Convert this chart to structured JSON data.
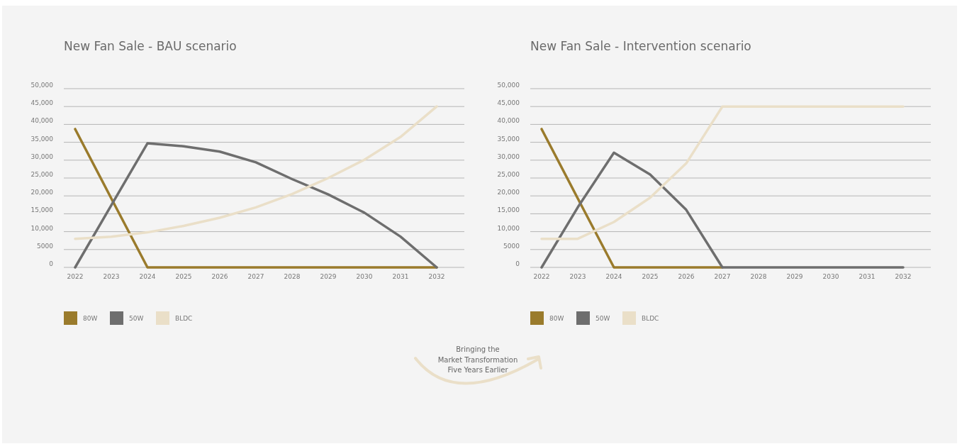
{
  "chart_data": [
    {
      "type": "line",
      "title": "New Fan Sale - BAU scenario",
      "categories": [
        "2022",
        "2023",
        "2024",
        "2025",
        "2026",
        "2027",
        "2028",
        "2029",
        "2030",
        "2031",
        "2032"
      ],
      "series": [
        {
          "name": "80W",
          "color": "#9a7b2c",
          "values": [
            38700,
            19300,
            0,
            0,
            0,
            0,
            0,
            0,
            0,
            0,
            0
          ]
        },
        {
          "name": "50W",
          "color": "#6e6e6e",
          "values": [
            0,
            17400,
            34700,
            33900,
            32400,
            29400,
            24700,
            20400,
            15300,
            8600,
            0
          ]
        },
        {
          "name": "BLDC",
          "color": "#eadfc8",
          "values": [
            8000,
            8600,
            9800,
            11600,
            13900,
            16800,
            20500,
            25000,
            30100,
            36500,
            45000
          ]
        }
      ],
      "ylim": [
        0,
        50000
      ],
      "yticks": [
        {
          "value": 0,
          "label": "0"
        },
        {
          "value": 5000,
          "label": "5000"
        },
        {
          "value": 10000,
          "label": "10,000"
        },
        {
          "value": 15000,
          "label": "15,000"
        },
        {
          "value": 20000,
          "label": "20,000"
        },
        {
          "value": 25000,
          "label": "25,000"
        },
        {
          "value": 30000,
          "label": "30,000"
        },
        {
          "value": 35000,
          "label": "35,000"
        },
        {
          "value": 40000,
          "label": "40,000"
        },
        {
          "value": 45000,
          "label": "45,000"
        },
        {
          "value": 50000,
          "label": "50,000"
        }
      ],
      "grid": "y",
      "legend": "bottom left",
      "line_style": "solid"
    },
    {
      "type": "line",
      "title": "New Fan Sale - Intervention scenario",
      "categories": [
        "2022",
        "2023",
        "2024",
        "2025",
        "2026",
        "2027",
        "2028",
        "2029",
        "2030",
        "2031",
        "2032"
      ],
      "series": [
        {
          "name": "80W",
          "color": "#9a7b2c",
          "values": [
            38700,
            19300,
            0,
            0,
            0,
            0,
            null,
            null,
            null,
            null,
            null
          ]
        },
        {
          "name": "50W",
          "color": "#6e6e6e",
          "values": [
            0,
            16800,
            32100,
            26000,
            16100,
            0,
            0,
            0,
            0,
            0,
            0
          ]
        },
        {
          "name": "BLDC",
          "color": "#eadfc8",
          "values": [
            8000,
            8000,
            12700,
            19500,
            29100,
            45000,
            45000,
            45000,
            45000,
            45000,
            45000
          ]
        }
      ],
      "ylim": [
        0,
        50000
      ],
      "yticks": [
        {
          "value": 0,
          "label": "0"
        },
        {
          "value": 5000,
          "label": "5000"
        },
        {
          "value": 10000,
          "label": "10,000"
        },
        {
          "value": 15000,
          "label": "15,000"
        },
        {
          "value": 20000,
          "label": "20,000"
        },
        {
          "value": 25000,
          "label": "25,000"
        },
        {
          "value": 30000,
          "label": "30,000"
        },
        {
          "value": 35000,
          "label": "35,000"
        },
        {
          "value": 40000,
          "label": "40,000"
        },
        {
          "value": 45000,
          "label": "45,000"
        },
        {
          "value": 50000,
          "label": "50,000"
        }
      ],
      "grid": "y",
      "legend": "bottom left",
      "line_style": "solid",
      "annotations": [
        "Bringing the\nMarket Transformation\nFive Years Earlier"
      ]
    }
  ]
}
